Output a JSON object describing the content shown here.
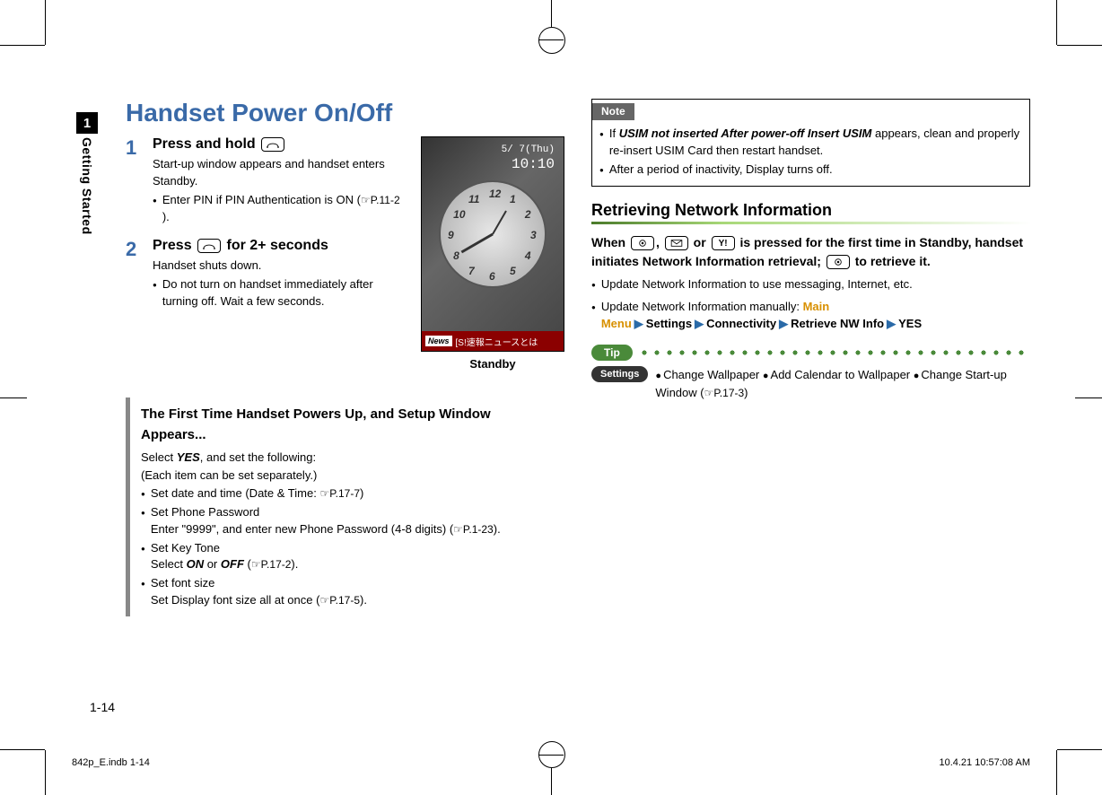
{
  "colors": {
    "title": "#3a6aa8",
    "step_num": "#3a6aa8",
    "sidebar_bg": "#000000",
    "note_bg": "#666666",
    "tip_bg": "#4a8a3a",
    "settings_bg": "#333333",
    "menu_main": "#d89000",
    "arrow": "#2a6aa8",
    "section_underline_start": "#4a7a2a"
  },
  "sidebar": {
    "num": "1",
    "label": "Getting Started"
  },
  "title": "Handset Power On/Off",
  "phone": {
    "date_line": "5/ 7(Thu)",
    "time_line": "10:10",
    "news_badge": "News",
    "news_text": "[S!速報ニュースとは",
    "caption": "Standby",
    "clock_numbers": [
      "12",
      "1",
      "2",
      "3",
      "4",
      "5",
      "6",
      "7",
      "8",
      "9",
      "10",
      "11"
    ]
  },
  "steps": [
    {
      "num": "1",
      "head_before": "Press and hold ",
      "key": "power",
      "head_after": "",
      "text": "Start-up window appears and handset enters Standby.",
      "bullets": [
        {
          "text": "Enter PIN if PIN Authentication is ON (",
          "ref": "P.11-2",
          "suffix": ")."
        }
      ]
    },
    {
      "num": "2",
      "head_before": "Press ",
      "key": "power",
      "head_after": " for 2+ seconds",
      "text": "Handset shuts down.",
      "bullets": [
        {
          "text": "Do not turn on handset immediately after turning off. Wait a few seconds."
        }
      ]
    }
  ],
  "setup": {
    "head": "The First Time Handset Powers Up, and Setup Window Appears...",
    "line1_a": "Select ",
    "line1_yes": "YES",
    "line1_b": ", and set the following:",
    "line2": "(Each item can be set separately.)",
    "items": [
      {
        "text": "Set date and time (Date & Time: ",
        "ref": "P.17-7",
        "suffix": ")"
      },
      {
        "text": "Set Phone Password",
        "sub": "Enter \"9999\", and enter new Phone Password (4-8 digits) (",
        "ref": "P.1-23",
        "suffix": ")."
      },
      {
        "text": "Set Key Tone",
        "sub_a": "Select ",
        "sub_on": "ON",
        "sub_mid": " or ",
        "sub_off": "OFF",
        "sub_b": " (",
        "ref": "P.17-2",
        "suffix": ")."
      },
      {
        "text": "Set font size",
        "sub": "Set Display font size all at once (",
        "ref": "P.17-5",
        "suffix": ")."
      }
    ]
  },
  "note": {
    "label": "Note",
    "items": [
      {
        "pre": "If ",
        "bi": "USIM not inserted After power-off Insert USIM",
        "post": " appears, clean and properly re-insert USIM Card then restart handset."
      },
      {
        "text": "After a period of inactivity, Display turns off."
      }
    ]
  },
  "network": {
    "head": "Retrieving Network Information",
    "intro_a": "When ",
    "intro_b": ", ",
    "intro_c": " or ",
    "intro_d": " is pressed for the first time in Standby, handset initiates Network Information retrieval; ",
    "intro_e": " to retrieve it.",
    "bullets": [
      {
        "text": "Update Network Information to use messaging, Internet, etc."
      },
      {
        "pre": "Update Network Information manually: ",
        "menu": [
          "Main Menu",
          "Settings",
          "Connectivity",
          "Retrieve NW Info",
          "YES"
        ]
      }
    ]
  },
  "tip": {
    "label": "Tip"
  },
  "settings": {
    "label": "Settings",
    "items": [
      {
        "text": "Change Wallpaper "
      },
      {
        "text": "Add Calendar to Wallpaper "
      },
      {
        "text": "Change Start-up Window (",
        "ref": "P.17-3",
        "suffix": ")"
      }
    ]
  },
  "page_num": "1-14",
  "footer_file": "842p_E.indb   1-14",
  "footer_date": "10.4.21   10:57:08 AM"
}
